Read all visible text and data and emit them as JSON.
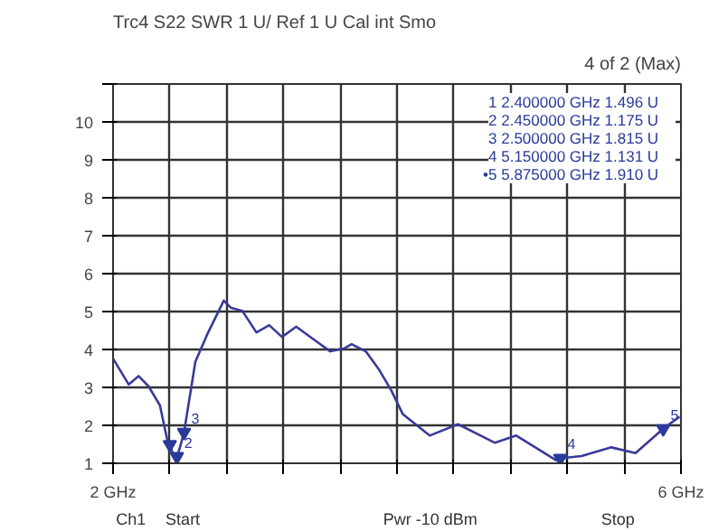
{
  "chart_data": {
    "type": "line",
    "title": "Trc4 S22 SWR 1 U/ Ref 1 U Cal int Smo",
    "subtitle": "4 of 2 (Max)",
    "xlim": [
      2,
      6
    ],
    "ylim": [
      1,
      11
    ],
    "xticks": [
      {
        "value": 2,
        "label": "2 GHz"
      },
      {
        "value": 2.4,
        "label": null
      },
      {
        "value": 2.8,
        "label": null
      },
      {
        "value": 3.2,
        "label": null
      },
      {
        "value": 3.6,
        "label": null
      },
      {
        "value": 4.0,
        "label": null
      },
      {
        "value": 4.4,
        "label": null
      },
      {
        "value": 4.8,
        "label": null
      },
      {
        "value": 5.2,
        "label": null
      },
      {
        "value": 5.6,
        "label": null
      },
      {
        "value": 6,
        "label": "6 GHz"
      }
    ],
    "yticks": [
      1,
      2,
      3,
      4,
      5,
      6,
      7,
      8,
      9,
      10,
      {
        "value": 11,
        "label": null
      }
    ],
    "grid": true,
    "series": [
      {
        "color": "#3a3a9a",
        "x": [
          2.0,
          2.11,
          2.18,
          2.25,
          2.33,
          2.38,
          2.4,
          2.43,
          2.45,
          2.47,
          2.5,
          2.58,
          2.67,
          2.78,
          2.83,
          2.91,
          3.01,
          3.1,
          3.19,
          3.29,
          3.43,
          3.53,
          3.63,
          3.68,
          3.78,
          3.87,
          3.96,
          4.04,
          4.23,
          4.43,
          4.69,
          4.84,
          5.12,
          5.15,
          5.3,
          5.51,
          5.68,
          5.875,
          5.99
        ],
        "values": [
          3.76,
          3.08,
          3.3,
          3.03,
          2.53,
          1.65,
          1.496,
          1.15,
          1.175,
          1.4,
          1.815,
          3.68,
          4.45,
          5.29,
          5.1,
          5.02,
          4.45,
          4.64,
          4.33,
          4.6,
          4.22,
          3.95,
          4.03,
          4.14,
          3.95,
          3.49,
          2.92,
          2.3,
          1.73,
          2.03,
          1.54,
          1.73,
          1.08,
          1.131,
          1.19,
          1.42,
          1.27,
          1.91,
          2.23
        ]
      },
      {
        "type": "scatter",
        "marker": "triangle",
        "color": "#2a3a9a",
        "x": [
          2.4,
          2.45,
          2.5,
          5.15,
          5.875
        ],
        "values": [
          1.496,
          1.175,
          1.815,
          1.131,
          1.91
        ]
      }
    ],
    "annotations": [
      {
        "text": "2",
        "x": 2.45,
        "y": 1.175
      },
      {
        "text": "3",
        "x": 2.5,
        "y": 1.815
      },
      {
        "text": "4",
        "x": 5.15,
        "y": 1.131
      },
      {
        "text": "5",
        "x": 5.875,
        "y": 1.91
      },
      "1   2.400000 GHz   1.496 U",
      "2   2.450000 GHz   1.175 U",
      "3   2.500000 GHz   1.815 U",
      "4   5.150000 GHz   1.131 U",
      "•5   5.875000 GHz   1.910 U",
      "Ch1",
      "Start",
      "Pwr -10 dBm",
      "Stop"
    ]
  }
}
